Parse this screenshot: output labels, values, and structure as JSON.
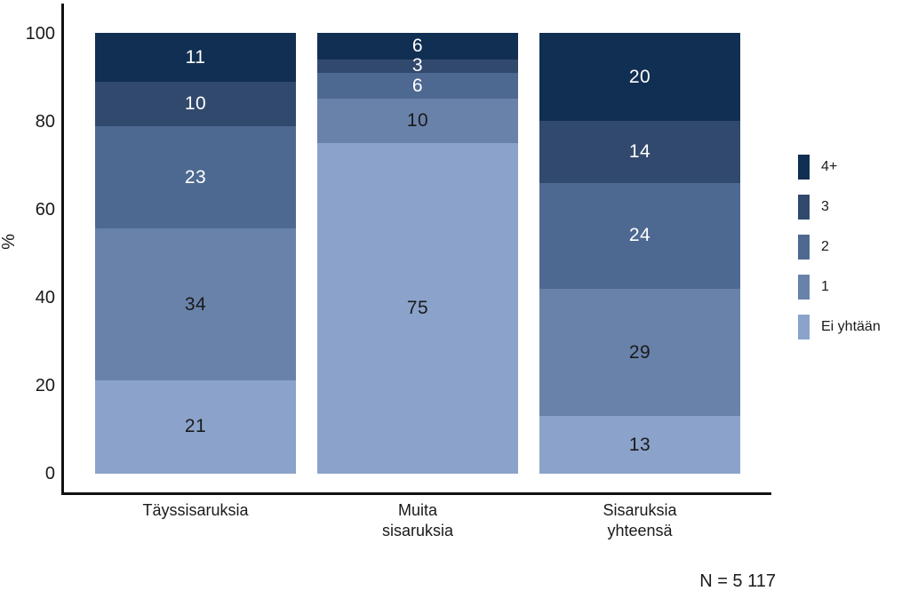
{
  "chart_data": {
    "type": "bar",
    "variant": "stacked-100-percent",
    "categories": [
      "Täyssisaruksia",
      "Muita\nsisaruksia",
      "Sisaruksia\nyhteensä"
    ],
    "series": [
      {
        "name": "4+",
        "color": "#112F52",
        "label_color": "#ffffff",
        "values": [
          11,
          6,
          20
        ]
      },
      {
        "name": "3",
        "color": "#32496E",
        "label_color": "#ffffff",
        "values": [
          10,
          3,
          14
        ]
      },
      {
        "name": "2",
        "color": "#4E6991",
        "label_color": "#ffffff",
        "values": [
          23,
          6,
          24
        ]
      },
      {
        "name": "1",
        "color": "#6982AA",
        "label_color": "#1a1a1a",
        "values": [
          34,
          10,
          29
        ]
      },
      {
        "name": "Ei yhtään",
        "color": "#8BA3CA",
        "label_color": "#1a1a1a",
        "values": [
          21,
          75,
          13
        ]
      }
    ],
    "ylabel": "%",
    "yticks": [
      0,
      20,
      40,
      60,
      80,
      100
    ],
    "ylim": [
      0,
      100
    ],
    "grid": false,
    "legend_position": "right",
    "annotation": "N = 5 117",
    "axis_color": "#111111",
    "background": "#ffffff"
  },
  "layout_values": {
    "note": "N = 5 117"
  }
}
